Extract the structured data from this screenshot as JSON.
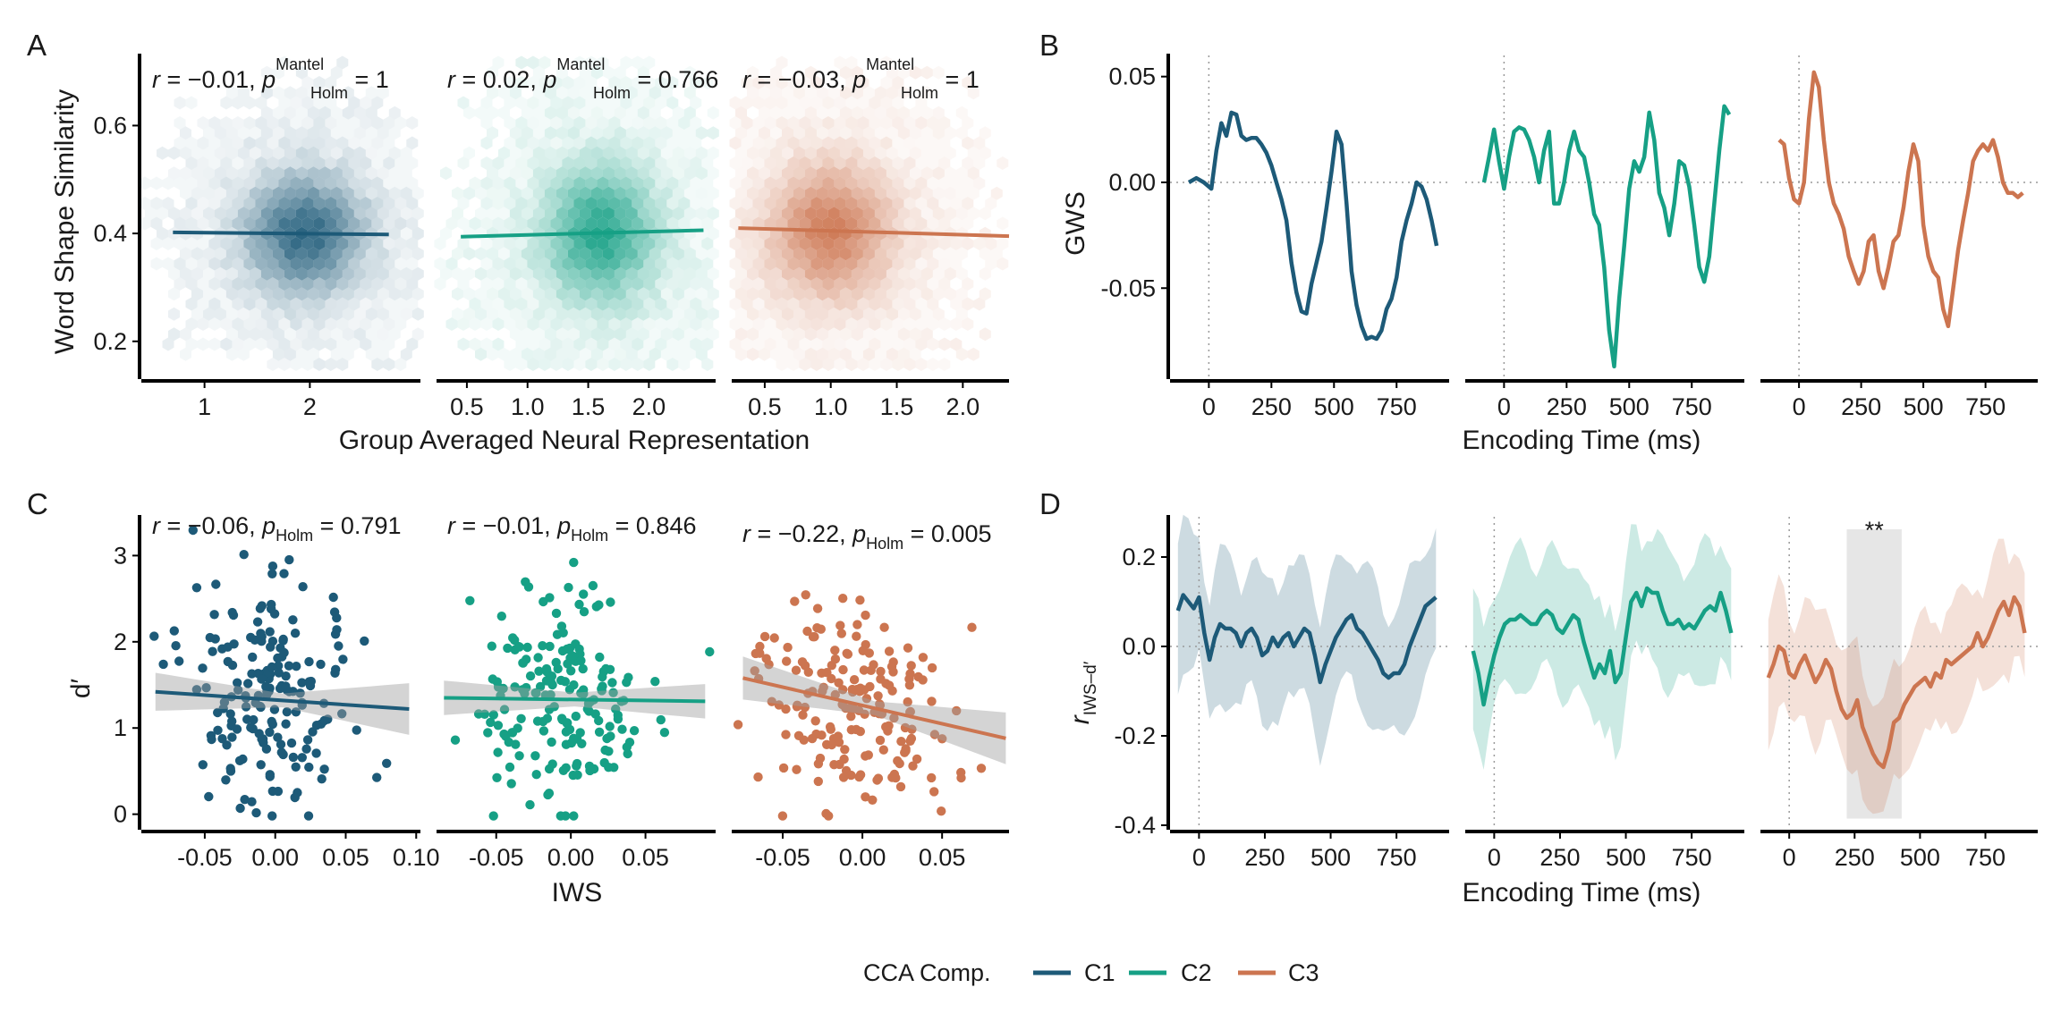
{
  "colors": {
    "C1": "#1d5a78",
    "C2": "#16a085",
    "C3": "#cc7550",
    "ci_gray": "#bdbdbd",
    "sig_shade": "#e6e6e6"
  },
  "legend": {
    "title": "CCA Comp.",
    "items": [
      "C1",
      "C2",
      "C3"
    ]
  },
  "chart_data": [
    {
      "panel": "A",
      "type": "hexbin_scatter",
      "xlabel": "Group Averaged Neural Representation",
      "ylabel": "Word Shape Similarity",
      "y_ticks": [
        "0.2",
        "0.4",
        "0.6"
      ],
      "ylim": [
        0.13,
        0.73
      ],
      "facets": [
        {
          "series": "C1",
          "xlim": [
            0.4,
            3.05
          ],
          "x_ticks": [
            "1",
            "2"
          ],
          "x_tick_values": [
            1,
            2
          ],
          "center": [
            1.95,
            0.4
          ],
          "spread": [
            0.38,
            0.075
          ],
          "fit": {
            "x": [
              0.7,
              2.75
            ],
            "y": [
              0.402,
              0.398
            ]
          },
          "annot": {
            "r": "r = −0.01,",
            "p": "p",
            "sup": "Mantel",
            "sub": "Holm",
            "val": " = 1"
          }
        },
        {
          "series": "C2",
          "xlim": [
            0.25,
            2.55
          ],
          "x_ticks": [
            "0.5",
            "1.0",
            "1.5",
            "2.0"
          ],
          "x_tick_values": [
            0.5,
            1.0,
            1.5,
            2.0
          ],
          "center": [
            1.6,
            0.4
          ],
          "spread": [
            0.32,
            0.085
          ],
          "fit": {
            "x": [
              0.45,
              2.45
            ],
            "y": [
              0.394,
              0.406
            ]
          },
          "annot": {
            "r": "r = 0.02,",
            "p": "p",
            "sup": "Mantel",
            "sub": "Holm",
            "val": " = 0.766"
          }
        },
        {
          "series": "C3",
          "xlim": [
            0.25,
            2.35
          ],
          "x_ticks": [
            "0.5",
            "1.0",
            "1.5",
            "2.0"
          ],
          "x_tick_values": [
            0.5,
            1.0,
            1.5,
            2.0
          ],
          "center": [
            1.0,
            0.405
          ],
          "spread": [
            0.32,
            0.085
          ],
          "fit": {
            "x": [
              0.3,
              2.35
            ],
            "y": [
              0.41,
              0.395
            ]
          },
          "annot": {
            "r": "r = −0.03,",
            "p": "p",
            "sup": "Mantel",
            "sub": "Holm",
            "val": " = 1"
          }
        }
      ]
    },
    {
      "panel": "B",
      "type": "line",
      "xlabel": "Encoding Time (ms)",
      "ylabel": "GWS",
      "y_ticks": [
        "-0.05",
        "0.00",
        "0.05"
      ],
      "y_tick_values": [
        -0.05,
        0.0,
        0.05
      ],
      "ylim": [
        -0.093,
        0.06
      ],
      "xlim": [
        -155,
        960
      ],
      "x_ticks": [
        "0",
        "250",
        "500",
        "750"
      ],
      "x_tick_values": [
        0,
        250,
        500,
        750
      ],
      "facets": [
        {
          "series": "C1",
          "x": [
            -80,
            -50,
            -20,
            10,
            30,
            50,
            70,
            90,
            110,
            130,
            150,
            170,
            190,
            210,
            230,
            250,
            270,
            290,
            310,
            330,
            350,
            370,
            390,
            410,
            430,
            450,
            470,
            490,
            510,
            530,
            550,
            570,
            590,
            610,
            630,
            650,
            670,
            690,
            710,
            730,
            750,
            770,
            790,
            810,
            830,
            850,
            870,
            890,
            910
          ],
          "y": [
            0.0,
            0.002,
            0.0,
            -0.003,
            0.015,
            0.028,
            0.022,
            0.033,
            0.032,
            0.022,
            0.02,
            0.021,
            0.021,
            0.018,
            0.014,
            0.008,
            0.0,
            -0.008,
            -0.018,
            -0.038,
            -0.052,
            -0.061,
            -0.062,
            -0.048,
            -0.038,
            -0.028,
            -0.012,
            0.005,
            0.024,
            0.018,
            -0.01,
            -0.042,
            -0.058,
            -0.068,
            -0.074,
            -0.073,
            -0.074,
            -0.07,
            -0.06,
            -0.055,
            -0.045,
            -0.028,
            -0.018,
            -0.01,
            0.0,
            -0.002,
            -0.008,
            -0.018,
            -0.03
          ]
        },
        {
          "series": "C2",
          "x": [
            -80,
            -60,
            -40,
            -20,
            0,
            20,
            40,
            60,
            80,
            100,
            120,
            140,
            160,
            180,
            200,
            220,
            240,
            260,
            280,
            300,
            320,
            340,
            360,
            380,
            400,
            420,
            440,
            460,
            480,
            500,
            520,
            540,
            560,
            580,
            600,
            620,
            640,
            660,
            680,
            700,
            720,
            740,
            760,
            780,
            800,
            820,
            840,
            860,
            880,
            900
          ],
          "y": [
            0.0,
            0.012,
            0.025,
            0.01,
            -0.003,
            0.012,
            0.024,
            0.026,
            0.025,
            0.02,
            0.012,
            0.0,
            0.015,
            0.024,
            -0.01,
            -0.01,
            0.0,
            0.015,
            0.024,
            0.015,
            0.012,
            0.0,
            -0.015,
            -0.02,
            -0.04,
            -0.07,
            -0.087,
            -0.055,
            -0.03,
            -0.003,
            0.01,
            0.005,
            0.012,
            0.033,
            0.02,
            -0.005,
            -0.012,
            -0.025,
            -0.01,
            0.01,
            0.008,
            -0.002,
            -0.02,
            -0.04,
            -0.047,
            -0.035,
            -0.01,
            0.015,
            0.036,
            0.032
          ]
        },
        {
          "series": "C3",
          "x": [
            -80,
            -60,
            -40,
            -20,
            0,
            20,
            40,
            60,
            80,
            100,
            120,
            140,
            160,
            180,
            200,
            220,
            240,
            260,
            280,
            300,
            320,
            340,
            360,
            380,
            400,
            420,
            440,
            460,
            480,
            500,
            520,
            540,
            560,
            580,
            600,
            620,
            640,
            660,
            680,
            700,
            720,
            740,
            760,
            780,
            800,
            820,
            840,
            860,
            880,
            900
          ],
          "y": [
            0.02,
            0.018,
            0.002,
            -0.008,
            -0.01,
            0.0,
            0.03,
            0.052,
            0.045,
            0.02,
            0.0,
            -0.01,
            -0.015,
            -0.022,
            -0.035,
            -0.042,
            -0.048,
            -0.042,
            -0.028,
            -0.025,
            -0.042,
            -0.05,
            -0.04,
            -0.028,
            -0.025,
            -0.012,
            0.005,
            0.018,
            0.01,
            -0.02,
            -0.035,
            -0.042,
            -0.045,
            -0.06,
            -0.068,
            -0.05,
            -0.032,
            -0.018,
            -0.005,
            0.01,
            0.015,
            0.018,
            0.015,
            0.02,
            0.012,
            0.0,
            -0.005,
            -0.005,
            -0.007,
            -0.005
          ]
        }
      ]
    },
    {
      "panel": "C",
      "type": "scatter",
      "xlabel": "IWS",
      "ylabel": "d′",
      "y_ticks": [
        "0",
        "1",
        "2",
        "3"
      ],
      "y_tick_values": [
        0,
        1,
        2,
        3
      ],
      "ylim": [
        -0.18,
        3.45
      ],
      "facets": [
        {
          "series": "C1",
          "xlim": [
            -0.095,
            0.103
          ],
          "x_ticks": [
            "-0.05",
            "0.00",
            "0.05",
            "0.10"
          ],
          "x_tick_values": [
            -0.05,
            0.0,
            0.05,
            0.1
          ],
          "fit": {
            "x": [
              -0.085,
              0.095
            ],
            "y": [
              1.42,
              1.22
            ]
          },
          "ci_halfwidth": [
            0.22,
            0.08,
            0.3
          ],
          "annot": {
            "r": "r = −0.06,",
            "p": "p",
            "sub": "Holm",
            "val": " = 0.791"
          }
        },
        {
          "series": "C2",
          "xlim": [
            -0.09,
            0.097
          ],
          "x_ticks": [
            "-0.05",
            "0.00",
            "0.05"
          ],
          "x_tick_values": [
            -0.05,
            0.0,
            0.05
          ],
          "fit": {
            "x": [
              -0.085,
              0.09
            ],
            "y": [
              1.35,
              1.31
            ]
          },
          "ci_halfwidth": [
            0.2,
            0.08,
            0.2
          ],
          "annot": {
            "r": "r = −0.01,",
            "p": "p",
            "sub": "Holm",
            "val": " = 0.846"
          }
        },
        {
          "series": "C3",
          "xlim": [
            -0.082,
            0.092
          ],
          "x_ticks": [
            "-0.05",
            "0.00",
            "0.05"
          ],
          "x_tick_values": [
            -0.05,
            0.0,
            0.05
          ],
          "fit": {
            "x": [
              -0.075,
              0.09
            ],
            "y": [
              1.58,
              0.88
            ]
          },
          "ci_halfwidth": [
            0.25,
            0.08,
            0.3
          ],
          "annot": {
            "r": "r = −0.22,",
            "p": "p",
            "sub": "Holm",
            "val": " = 0.005"
          }
        }
      ]
    },
    {
      "panel": "D",
      "type": "line_with_ribbon",
      "xlabel": "Encoding Time (ms)",
      "ylabel": "r",
      "ylabel_sub": "IWS–d′",
      "y_ticks": [
        "-0.4",
        "-0.2",
        "0.0",
        "0.2"
      ],
      "y_tick_values": [
        -0.4,
        -0.2,
        0.0,
        0.2
      ],
      "ylim": [
        -0.41,
        0.29
      ],
      "xlim": [
        -110,
        950
      ],
      "x_ticks": [
        "0",
        "250",
        "500",
        "750"
      ],
      "x_tick_values": [
        0,
        250,
        500,
        750
      ],
      "facets": [
        {
          "series": "C1",
          "x": [
            -80,
            -60,
            -40,
            -20,
            0,
            20,
            40,
            60,
            80,
            100,
            120,
            140,
            160,
            180,
            200,
            220,
            240,
            260,
            280,
            300,
            320,
            340,
            360,
            380,
            400,
            420,
            440,
            460,
            480,
            500,
            520,
            540,
            560,
            580,
            600,
            620,
            640,
            660,
            680,
            700,
            720,
            740,
            760,
            780,
            800,
            820,
            840,
            860,
            880,
            900
          ],
          "y": [
            0.08,
            0.115,
            0.1,
            0.085,
            0.11,
            0.03,
            -0.03,
            0.02,
            0.05,
            0.04,
            0.04,
            0.03,
            0.0,
            0.03,
            0.04,
            0.02,
            -0.02,
            -0.01,
            0.02,
            0.0,
            0.02,
            0.03,
            0.0,
            0.02,
            0.04,
            0.03,
            -0.02,
            -0.08,
            -0.04,
            -0.01,
            0.02,
            0.04,
            0.06,
            0.07,
            0.04,
            0.03,
            0.01,
            -0.01,
            -0.03,
            -0.06,
            -0.07,
            -0.06,
            -0.06,
            -0.04,
            0.0,
            0.03,
            0.06,
            0.09,
            0.1,
            0.11
          ],
          "ci_halfwidth": 0.15
        },
        {
          "series": "C2",
          "x": [
            -80,
            -60,
            -40,
            -20,
            0,
            20,
            40,
            60,
            80,
            100,
            120,
            140,
            160,
            180,
            200,
            220,
            240,
            260,
            280,
            300,
            320,
            340,
            360,
            380,
            400,
            420,
            440,
            460,
            480,
            500,
            520,
            540,
            560,
            580,
            600,
            620,
            640,
            660,
            680,
            700,
            720,
            740,
            760,
            780,
            800,
            820,
            840,
            860,
            880,
            900
          ],
          "y": [
            -0.01,
            -0.06,
            -0.13,
            -0.07,
            -0.02,
            0.02,
            0.05,
            0.06,
            0.06,
            0.07,
            0.06,
            0.05,
            0.05,
            0.07,
            0.08,
            0.07,
            0.04,
            0.03,
            0.05,
            0.07,
            0.06,
            0.01,
            -0.03,
            -0.07,
            -0.04,
            -0.06,
            -0.01,
            -0.08,
            -0.06,
            0.02,
            0.1,
            0.12,
            0.09,
            0.13,
            0.12,
            0.12,
            0.08,
            0.05,
            0.05,
            0.06,
            0.04,
            0.05,
            0.04,
            0.06,
            0.08,
            0.09,
            0.08,
            0.12,
            0.08,
            0.03
          ],
          "ci_halfwidth": 0.14
        },
        {
          "series": "C3",
          "x": [
            -80,
            -60,
            -40,
            -20,
            0,
            20,
            40,
            60,
            80,
            100,
            120,
            140,
            160,
            180,
            200,
            220,
            240,
            260,
            280,
            300,
            320,
            340,
            360,
            380,
            400,
            420,
            440,
            460,
            480,
            500,
            520,
            540,
            560,
            580,
            600,
            620,
            640,
            660,
            680,
            700,
            720,
            740,
            760,
            780,
            800,
            820,
            840,
            860,
            880,
            900
          ],
          "y": [
            -0.07,
            -0.04,
            0.0,
            -0.01,
            -0.06,
            -0.07,
            -0.04,
            -0.02,
            -0.05,
            -0.08,
            -0.06,
            -0.03,
            -0.05,
            -0.1,
            -0.14,
            -0.16,
            -0.15,
            -0.12,
            -0.18,
            -0.21,
            -0.24,
            -0.26,
            -0.27,
            -0.23,
            -0.17,
            -0.16,
            -0.13,
            -0.11,
            -0.09,
            -0.08,
            -0.07,
            -0.09,
            -0.06,
            -0.07,
            -0.03,
            -0.04,
            -0.03,
            -0.02,
            -0.01,
            0.0,
            0.03,
            0.0,
            0.02,
            0.05,
            0.08,
            0.1,
            0.07,
            0.11,
            0.09,
            0.03
          ],
          "ci_halfwidth": 0.13,
          "sig_window": {
            "x": [
              220,
              430
            ],
            "label": "**"
          }
        }
      ]
    }
  ]
}
